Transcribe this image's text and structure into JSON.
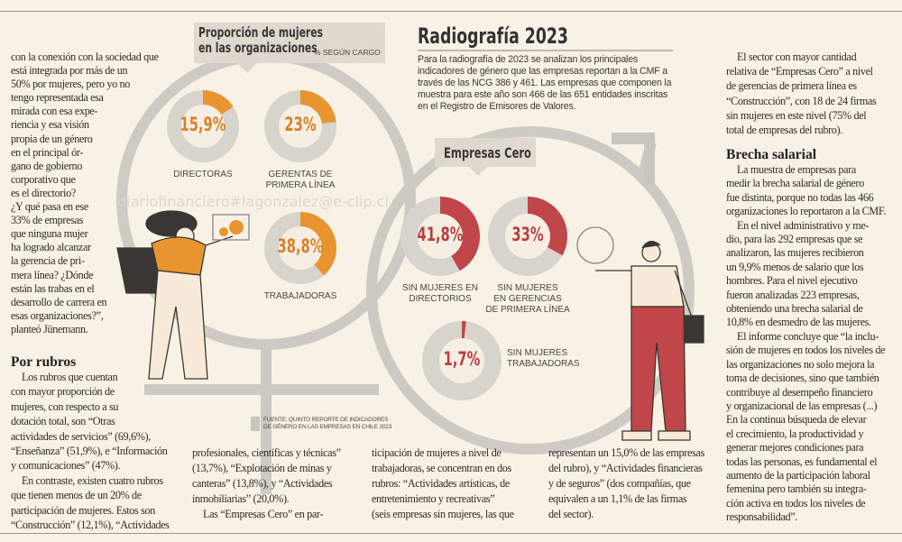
{
  "watermark": "diariofinanciero#lagonzalez@e-clip.cl",
  "col_left": {
    "lines": [
      "con la conexión con la sociedad que",
      "está integrada por más de un",
      "50% por mujeres, pero yo no",
      "tengo representada esa",
      "mirada con esa expe-",
      "riencia y esa visión",
      "propia de un género",
      "en el principal ór-",
      "gano de gobierno",
      "corporativo que",
      "es el directorio?",
      "¿Y qué pasa en ese",
      "33% de empresas",
      "que ninguna mujer",
      "ha logrado alcanzar",
      "la gerencia de pri-",
      "mera línea? ¿Dónde",
      "están las trabas en el",
      "desarrollo de carrera en",
      "esas organizaciones?”,",
      "planteó Jünemann."
    ]
  },
  "por_rubros": {
    "heading": "Por rubros",
    "lines": [
      "Los rubros que cuentan",
      "con mayor proporción de",
      "mujeres, con respecto a su",
      "dotación total, son “Otras",
      "actividades de servicios” (69,6%),",
      "“Enseñanza” (51,9%), e “Información",
      "y comunicaciones” (47%).",
      "En contraste, existen cuatro rubros",
      "que tienen menos de un 20% de",
      "participación de mujeres. Estos son",
      "“Construcción” (12,1%), “Actividades"
    ]
  },
  "col2": {
    "lines": [
      "profesionales, científicas y técnicas”",
      "(13,7%), “Explotación de minas y",
      "canteras” (13,8%), y “Actividades",
      "inmobiliarias” (20,0%).",
      "Las “Empresas Cero” en par-"
    ]
  },
  "col3": {
    "lines": [
      "ticipación de mujeres a nivel de",
      "trabajadoras, se concentran en dos",
      "rubros: “Actividades artísticas, de",
      "entretenimiento y recreativas”",
      "(seis empresas sin mujeres, las que"
    ]
  },
  "col4": {
    "lines": [
      "representan un 15,0% de las empresas",
      "del rubro), y “Actividades financieras",
      "y de seguros” (dos compañías, que",
      "equivalen a un 1,1% de las firmas",
      "del sector)."
    ]
  },
  "col_right": {
    "p1": [
      "El sector con mayor cantidad",
      "relativa de “Empresas Cero” a nivel",
      "de gerencias de primera línea es",
      "“Construcción”, con 18 de 24 firmas",
      "sin mujeres en este nivel (75% del",
      "total de empresas del rubro)."
    ],
    "heading": "Brecha salarial",
    "p2": [
      "La muestra de empresas para",
      "medir la brecha salarial de género",
      "fue distinta, porque no todas las 466",
      "organizaciones lo reportaron a la CMF.",
      "En el nivel administrativo y me-",
      "dio, para las 292 empresas que se",
      "analizaron, las mujeres recibieron",
      "un 9,9% menos de salario que los",
      "hombres. Para el nivel ejecutivo",
      "fueron analizadas 223 empresas,",
      "obteniendo una brecha salarial de",
      "10,8% en desmedro de las mujeres.",
      "El informe concluye que “la inclu-",
      "sión de mujeres en todos los niveles de",
      "las organizaciones no solo mejora la",
      "toma de decisiones, sino que también",
      "contribuye al desempeño financiero",
      "y organizacional de las empresas (...)",
      "En la continua búsqueda de elevar",
      "el crecimiento, la productividad y",
      "generar mejores condiciones para",
      "todas las personas, es fundamental el",
      "aumento de la participación laboral",
      "femenina pero también su integra-",
      "ción activa en todos los niveles de",
      "responsabilidad”."
    ]
  },
  "radiografia": {
    "title": "Radiografía 2023",
    "lines": [
      "Para la radiografía de 2023 se analizan los principales",
      "indicadores de género que las empresas reportan a la CMF a",
      "través de las NCG 386 y 461. Las empresas que componen la",
      "muestra para este año son 466 de las 651 entidades inscritas",
      "en el Registro de Emisores de Valores."
    ]
  },
  "proporcion": {
    "title_1": "Proporción de mujeres",
    "title_2": "en las organizaciones",
    "subtitle": "% SEGÚN CARGO",
    "color": "#e8952f",
    "items": [
      {
        "value": 15.9,
        "text": "15,9%",
        "label": [
          "DIRECTORAS"
        ]
      },
      {
        "value": 23,
        "text": "23%",
        "label": [
          "GERENTAS DE",
          "PRIMERA LÍNEA"
        ]
      },
      {
        "value": 38.8,
        "text": "38,8%",
        "label": [
          "TRABAJADORAS"
        ]
      }
    ]
  },
  "empresas_cero": {
    "title": "Empresas Cero",
    "color": "#c0464a",
    "items": [
      {
        "value": 41.8,
        "text": "41,8%",
        "label": [
          "SIN MUJERES EN",
          "DIRECTORIOS"
        ]
      },
      {
        "value": 33,
        "text": "33%",
        "label": [
          "SIN MUJERES",
          "EN GERENCIAS",
          "DE PRIMERA LÍNEA"
        ]
      },
      {
        "value": 1.7,
        "text": "1,7%",
        "label": [
          "SIN MUJERES",
          "TRABAJADORAS"
        ]
      }
    ]
  },
  "source": [
    "FUENTE: QUINTO REPORTE DE INDICADORES",
    "DE GÉNERO EN LAS EMPRESAS EN CHILE 2023"
  ]
}
